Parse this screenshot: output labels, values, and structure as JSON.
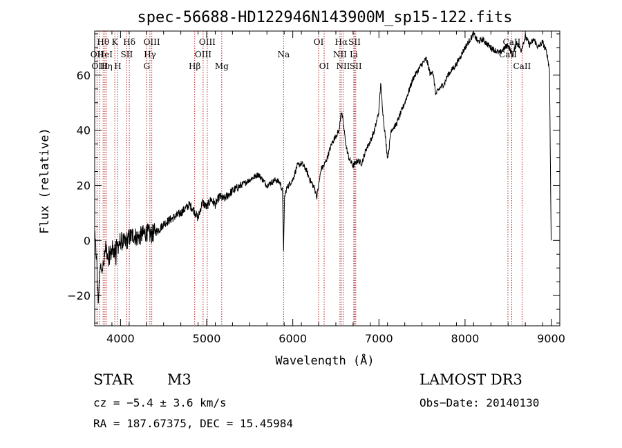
{
  "chart_data": {
    "type": "line",
    "title": "spec-56688-HD122946N143900M_sp15-122.fits",
    "xlabel": "Wavelength (Å)",
    "ylabel": "Flux (relative)",
    "xlim": [
      3700,
      9100
    ],
    "ylim": [
      -31,
      76
    ],
    "xticks": [
      4000,
      5000,
      6000,
      7000,
      8000,
      9000
    ],
    "yticks": [
      -20,
      0,
      20,
      40,
      60
    ],
    "spectrum_anchors": {
      "x": [
        3700,
        3720,
        3740,
        3760,
        3780,
        3800,
        3830,
        3860,
        3900,
        3950,
        4000,
        4050,
        4100,
        4150,
        4200,
        4250,
        4300,
        4350,
        4400,
        4450,
        4500,
        4600,
        4700,
        4800,
        4850,
        4900,
        4950,
        5000,
        5050,
        5100,
        5150,
        5200,
        5300,
        5400,
        5500,
        5600,
        5700,
        5800,
        5850,
        5880,
        5893,
        5905,
        5930,
        5950,
        6000,
        6050,
        6100,
        6150,
        6200,
        6250,
        6280,
        6300,
        6330,
        6360,
        6400,
        6450,
        6500,
        6540,
        6560,
        6580,
        6600,
        6620,
        6650,
        6700,
        6750,
        6800,
        6850,
        6900,
        6950,
        7000,
        7020,
        7050,
        7080,
        7100,
        7120,
        7140,
        7200,
        7300,
        7400,
        7500,
        7550,
        7600,
        7620,
        7640,
        7660,
        7700,
        7760,
        7800,
        7900,
        8000,
        8100,
        8150,
        8200,
        8300,
        8400,
        8500,
        8550,
        8600,
        8650,
        8700,
        8750,
        8800,
        8850,
        8900,
        8950,
        8960,
        8980,
        9000
      ],
      "y": [
        0,
        -5,
        -22,
        -12,
        -8,
        -10,
        -2,
        -6,
        -4,
        -3,
        0,
        -1,
        1,
        2,
        1,
        2,
        3,
        2,
        3,
        4,
        6,
        8,
        10,
        13,
        11,
        8,
        14,
        12,
        15,
        13,
        16,
        15,
        18,
        20,
        22,
        24,
        20,
        22,
        21,
        18,
        -3,
        16,
        19,
        20,
        22,
        27,
        28,
        26,
        22,
        19,
        16,
        20,
        26,
        27,
        30,
        35,
        38,
        40,
        47,
        44,
        39,
        34,
        30,
        27,
        29,
        28,
        33,
        36,
        40,
        47,
        57,
        45,
        36,
        30,
        34,
        40,
        42,
        50,
        59,
        64,
        66,
        60,
        62,
        58,
        53,
        55,
        57,
        60,
        64,
        70,
        75,
        72,
        73,
        70,
        68,
        71,
        67,
        72,
        69,
        74,
        71,
        73,
        70,
        72,
        68,
        66,
        62,
        0
      ]
    },
    "lines": [
      {
        "name": "Hθ",
        "x": 3798,
        "row": 0
      },
      {
        "name": "OII",
        "x": 3727,
        "row": 1
      },
      {
        "name": "OIII",
        "x": 3760,
        "row": 2
      },
      {
        "name": "HeI",
        "x": 3819,
        "row": 1
      },
      {
        "name": "Hη",
        "x": 3835,
        "row": 2
      },
      {
        "name": "K",
        "x": 3934,
        "row": 0
      },
      {
        "name": "H",
        "x": 3969,
        "row": 2
      },
      {
        "name": "SII",
        "x": 4072,
        "row": 1
      },
      {
        "name": "Hδ",
        "x": 4102,
        "row": 0
      },
      {
        "name": "OIII",
        "x": 4363,
        "row": 0
      },
      {
        "name": "Hγ",
        "x": 4341,
        "row": 1
      },
      {
        "name": "G",
        "x": 4305,
        "row": 2
      },
      {
        "name": "OIII",
        "x": 5007,
        "row": 0
      },
      {
        "name": "OIII",
        "x": 4959,
        "row": 1
      },
      {
        "name": "Hβ",
        "x": 4861,
        "row": 2
      },
      {
        "name": "Mg",
        "x": 5175,
        "row": 2
      },
      {
        "name": "Na",
        "x": 5893,
        "row": 1
      },
      {
        "name": "OI",
        "x": 6300,
        "row": 0
      },
      {
        "name": "OI",
        "x": 6364,
        "row": 2
      },
      {
        "name": "Hα",
        "x": 6563,
        "row": 0
      },
      {
        "name": "NII",
        "x": 6548,
        "row": 1
      },
      {
        "name": "NII",
        "x": 6584,
        "row": 2
      },
      {
        "name": "SII",
        "x": 6717,
        "row": 0
      },
      {
        "name": "Li",
        "x": 6708,
        "row": 1
      },
      {
        "name": "SII",
        "x": 6731,
        "row": 2
      },
      {
        "name": "CaII",
        "x": 8542,
        "row": 0
      },
      {
        "name": "CaII",
        "x": 8498,
        "row": 1
      },
      {
        "name": "CaII",
        "x": 8662,
        "row": 2
      }
    ]
  },
  "info": {
    "object_type": "STAR",
    "subclass": "M3",
    "cz": "cz = −5.4 ± 3.6 km/s",
    "coords": "RA = 187.67375, DEC =  15.45984",
    "survey": "LAMOST DR3",
    "obs_date": "Obs−Date: 20140130"
  },
  "colors": {
    "line_marker": "#b22222",
    "axis": "#000000"
  }
}
